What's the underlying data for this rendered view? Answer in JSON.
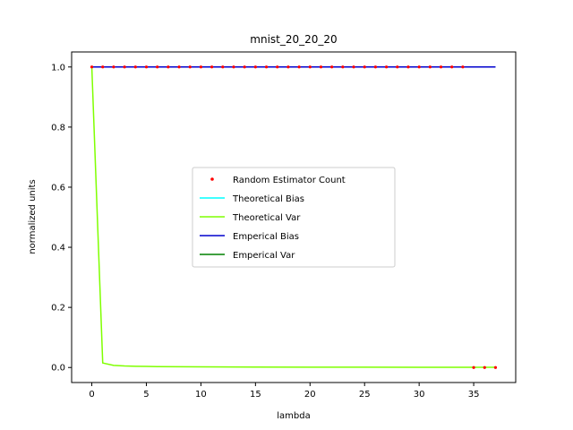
{
  "chart_data": {
    "type": "line",
    "title": "mnist_20_20_20",
    "xlabel": "lambda",
    "ylabel": "normalized units",
    "xlim": [
      -1.85,
      38.85
    ],
    "ylim": [
      -0.05,
      1.05
    ],
    "xticks": [
      0,
      5,
      10,
      15,
      20,
      25,
      30,
      35
    ],
    "yticks": [
      0.0,
      0.2,
      0.4,
      0.6,
      0.8,
      1.0
    ],
    "grid": false,
    "legend_position": "center",
    "series": [
      {
        "name": "Random Estimator Count",
        "style": "points",
        "color": "#ff0000",
        "x": [
          0,
          1,
          2,
          3,
          4,
          5,
          6,
          7,
          8,
          9,
          10,
          11,
          12,
          13,
          14,
          15,
          16,
          17,
          18,
          19,
          20,
          21,
          22,
          23,
          24,
          25,
          26,
          27,
          28,
          29,
          30,
          31,
          32,
          33,
          34,
          35,
          36,
          37
        ],
        "y": [
          1,
          1,
          1,
          1,
          1,
          1,
          1,
          1,
          1,
          1,
          1,
          1,
          1,
          1,
          1,
          1,
          1,
          1,
          1,
          1,
          1,
          1,
          1,
          1,
          1,
          1,
          1,
          1,
          1,
          1,
          1,
          1,
          1,
          1,
          1,
          0,
          0,
          0
        ]
      },
      {
        "name": "Theoretical Bias",
        "style": "line",
        "color": "#00ffff",
        "x": [
          0,
          37
        ],
        "y": [
          1,
          1
        ]
      },
      {
        "name": "Theoretical Var",
        "style": "line",
        "color": "#7fff00",
        "x": [
          0,
          1,
          2,
          3,
          4,
          5,
          6,
          8,
          10,
          15,
          20,
          25,
          30,
          35,
          37
        ],
        "y": [
          1.0,
          0.015,
          0.007,
          0.005,
          0.004,
          0.0035,
          0.003,
          0.0025,
          0.002,
          0.0015,
          0.0012,
          0.001,
          0.0008,
          0.0006,
          0.0005
        ]
      },
      {
        "name": "Emperical Bias",
        "style": "line",
        "color": "#0000cd",
        "x": [
          0,
          37
        ],
        "y": [
          1,
          1
        ]
      },
      {
        "name": "Emperical Var",
        "style": "line",
        "color": "#008000",
        "x": [],
        "y": []
      }
    ]
  }
}
